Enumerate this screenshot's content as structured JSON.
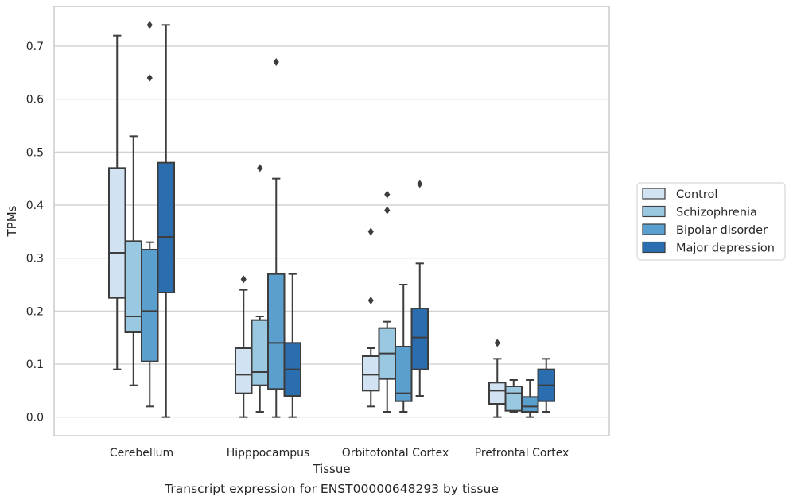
{
  "caption": "Transcript expression for ENST00000648293 by tissue",
  "chart_data": {
    "type": "boxplot",
    "xlabel": "Tissue",
    "ylabel": "TPMs",
    "ylim": [
      -0.035,
      0.775
    ],
    "yticks": [
      0.0,
      0.1,
      0.2,
      0.3,
      0.4,
      0.5,
      0.6,
      0.7
    ],
    "ytick_labels": [
      "0.0",
      "0.1",
      "0.2",
      "0.3",
      "0.4",
      "0.5",
      "0.6",
      "0.7"
    ],
    "grid": "horizontal",
    "legend_position": "right",
    "categories": [
      "Cerebellum",
      "Hipppocampus",
      "Orbitofontal Cortex",
      "Prefrontal Cortex"
    ],
    "series": [
      {
        "name": "Control",
        "color": "#d1e2f2",
        "boxes": [
          {
            "min": 0.09,
            "q1": 0.225,
            "median": 0.31,
            "q3": 0.47,
            "max": 0.72,
            "outliers": []
          },
          {
            "min": 0.0,
            "q1": 0.045,
            "median": 0.08,
            "q3": 0.13,
            "max": 0.24,
            "outliers": [
              0.26
            ]
          },
          {
            "min": 0.02,
            "q1": 0.05,
            "median": 0.08,
            "q3": 0.115,
            "max": 0.13,
            "outliers": [
              0.22,
              0.35
            ]
          },
          {
            "min": 0.0,
            "q1": 0.025,
            "median": 0.05,
            "q3": 0.065,
            "max": 0.11,
            "outliers": [
              0.14
            ]
          }
        ]
      },
      {
        "name": "Schizophrenia",
        "color": "#9ac8e0",
        "boxes": [
          {
            "min": 0.06,
            "q1": 0.16,
            "median": 0.19,
            "q3": 0.332,
            "max": 0.53,
            "outliers": []
          },
          {
            "min": 0.01,
            "q1": 0.06,
            "median": 0.085,
            "q3": 0.183,
            "max": 0.19,
            "outliers": [
              0.47
            ]
          },
          {
            "min": 0.01,
            "q1": 0.072,
            "median": 0.12,
            "q3": 0.168,
            "max": 0.18,
            "outliers": [
              0.39,
              0.42
            ]
          },
          {
            "min": 0.01,
            "q1": 0.012,
            "median": 0.045,
            "q3": 0.058,
            "max": 0.07,
            "outliers": []
          }
        ]
      },
      {
        "name": "Bipolar disorder",
        "color": "#5a9fcd",
        "boxes": [
          {
            "min": 0.02,
            "q1": 0.105,
            "median": 0.2,
            "q3": 0.316,
            "max": 0.33,
            "outliers": [
              0.64,
              0.74
            ]
          },
          {
            "min": 0.0,
            "q1": 0.053,
            "median": 0.14,
            "q3": 0.27,
            "max": 0.45,
            "outliers": [
              0.67
            ]
          },
          {
            "min": 0.01,
            "q1": 0.03,
            "median": 0.045,
            "q3": 0.133,
            "max": 0.25,
            "outliers": []
          },
          {
            "min": 0.0,
            "q1": 0.01,
            "median": 0.02,
            "q3": 0.038,
            "max": 0.07,
            "outliers": []
          }
        ]
      },
      {
        "name": "Major depression",
        "color": "#2a6eb0",
        "boxes": [
          {
            "min": 0.0,
            "q1": 0.235,
            "median": 0.34,
            "q3": 0.48,
            "max": 0.74,
            "outliers": []
          },
          {
            "min": 0.0,
            "q1": 0.04,
            "median": 0.09,
            "q3": 0.14,
            "max": 0.27,
            "outliers": []
          },
          {
            "min": 0.04,
            "q1": 0.09,
            "median": 0.15,
            "q3": 0.205,
            "max": 0.29,
            "outliers": [
              0.44
            ]
          },
          {
            "min": 0.01,
            "q1": 0.03,
            "median": 0.06,
            "q3": 0.09,
            "max": 0.11,
            "outliers": []
          }
        ]
      }
    ]
  }
}
